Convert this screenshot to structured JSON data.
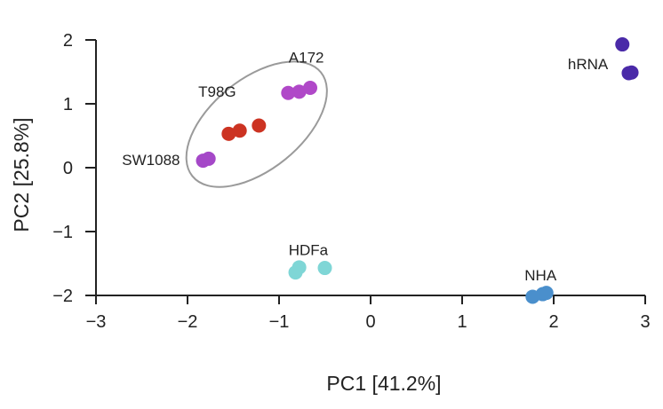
{
  "chart_data": {
    "type": "scatter",
    "title": "",
    "xlabel": "PC1 [41.2%]",
    "ylabel": "PC2 [25.8%]",
    "xlim": [
      -3,
      3
    ],
    "ylim": [
      -2,
      2
    ],
    "xticks": [
      "−3",
      "−2",
      "−1",
      "0",
      "1",
      "2",
      "3"
    ],
    "yticks": [
      "2",
      "1",
      "0",
      "−1",
      "−2"
    ],
    "xtick_values": [
      -3,
      -2,
      -1,
      0,
      1,
      2,
      3
    ],
    "ytick_values": [
      2,
      1,
      0,
      -1,
      -2
    ],
    "grid": false,
    "legend": "none",
    "groups": [
      {
        "name": "A172",
        "color": "#b048c8",
        "points": [
          [
            -0.9,
            1.17
          ],
          [
            -0.78,
            1.19
          ],
          [
            -0.66,
            1.25
          ]
        ]
      },
      {
        "name": "T98G",
        "color": "#cc3322",
        "points": [
          [
            -1.55,
            0.53
          ],
          [
            -1.43,
            0.58
          ],
          [
            -1.22,
            0.66
          ]
        ]
      },
      {
        "name": "SW1088",
        "color": "#a548c8",
        "points": [
          [
            -1.83,
            0.11
          ],
          [
            -1.77,
            0.14
          ]
        ]
      },
      {
        "name": "hRNA",
        "color": "#4a2aa8",
        "points": [
          [
            2.75,
            1.93
          ],
          [
            2.82,
            1.48
          ],
          [
            2.85,
            1.49
          ]
        ]
      },
      {
        "name": "HDFa",
        "color": "#7fd6d6",
        "points": [
          [
            -0.82,
            -1.64
          ],
          [
            -0.78,
            -1.56
          ],
          [
            -0.5,
            -1.57
          ]
        ]
      },
      {
        "name": "NHA",
        "color": "#4a8fcc",
        "points": [
          [
            1.77,
            -2.02
          ],
          [
            1.88,
            -1.98
          ],
          [
            1.92,
            -1.96
          ]
        ]
      }
    ],
    "annotations": [
      {
        "type": "ellipse",
        "color": "#9a9a9a",
        "encloses": [
          "A172",
          "T98G",
          "SW1088"
        ]
      }
    ]
  }
}
